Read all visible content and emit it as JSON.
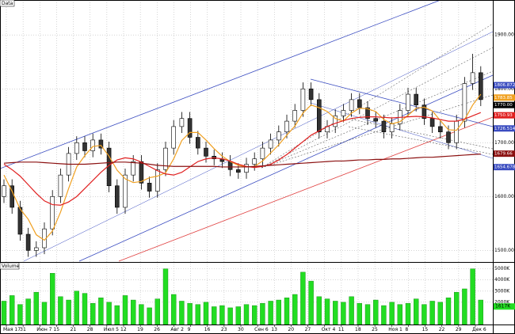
{
  "chart_data": [
    {
      "type": "candlestick",
      "title": "Data",
      "grid": true,
      "ylim": [
        1480,
        1965
      ],
      "yticks": [
        {
          "value": 1500,
          "label": "1500.00"
        },
        {
          "value": 1600,
          "label": "1600.00"
        },
        {
          "value": 1700,
          "label": "1700.00"
        },
        {
          "value": 1800,
          "label": "1800.00"
        },
        {
          "value": 1900,
          "label": "1900.00"
        }
      ],
      "open": [
        1600,
        1620,
        1580,
        1530,
        1500,
        1505,
        1540,
        1600,
        1640,
        1680,
        1700,
        1685,
        1705,
        1690,
        1620,
        1580,
        1640,
        1665,
        1625,
        1610,
        1650,
        1690,
        1730,
        1745,
        1710,
        1690,
        1675,
        1670,
        1665,
        1650,
        1645,
        1660,
        1670,
        1690,
        1705,
        1720,
        1740,
        1760,
        1800,
        1780,
        1720,
        1730,
        1750,
        1760,
        1780,
        1765,
        1745,
        1740,
        1720,
        1735,
        1760,
        1790,
        1770,
        1745,
        1730,
        1720,
        1700,
        1740,
        1810,
        1830
      ],
      "high": [
        1632,
        1632,
        1592,
        1542,
        1517,
        1552,
        1612,
        1652,
        1692,
        1712,
        1712,
        1717,
        1717,
        1702,
        1632,
        1652,
        1677,
        1677,
        1637,
        1662,
        1702,
        1742,
        1757,
        1757,
        1722,
        1702,
        1687,
        1682,
        1677,
        1662,
        1672,
        1682,
        1702,
        1717,
        1732,
        1752,
        1772,
        1812,
        1812,
        1792,
        1742,
        1762,
        1772,
        1792,
        1792,
        1777,
        1757,
        1752,
        1747,
        1772,
        1802,
        1802,
        1782,
        1757,
        1742,
        1732,
        1752,
        1822,
        1865,
        1842
      ],
      "low": [
        1588,
        1568,
        1518,
        1488,
        1488,
        1493,
        1528,
        1588,
        1628,
        1668,
        1673,
        1673,
        1678,
        1608,
        1568,
        1568,
        1628,
        1613,
        1598,
        1598,
        1638,
        1678,
        1718,
        1698,
        1678,
        1663,
        1658,
        1653,
        1638,
        1633,
        1633,
        1648,
        1658,
        1678,
        1693,
        1708,
        1728,
        1748,
        1768,
        1708,
        1708,
        1718,
        1738,
        1748,
        1753,
        1733,
        1728,
        1708,
        1708,
        1723,
        1748,
        1758,
        1733,
        1718,
        1708,
        1688,
        1688,
        1728,
        1798,
        1768
      ],
      "close": [
        1620,
        1580,
        1530,
        1500,
        1505,
        1540,
        1600,
        1640,
        1680,
        1700,
        1685,
        1705,
        1690,
        1620,
        1580,
        1640,
        1665,
        1625,
        1610,
        1650,
        1690,
        1730,
        1745,
        1710,
        1690,
        1675,
        1670,
        1665,
        1650,
        1645,
        1660,
        1670,
        1690,
        1705,
        1720,
        1740,
        1760,
        1800,
        1780,
        1720,
        1730,
        1750,
        1760,
        1780,
        1765,
        1745,
        1740,
        1720,
        1735,
        1760,
        1790,
        1770,
        1745,
        1730,
        1720,
        1700,
        1740,
        1810,
        1830,
        1780
      ],
      "series": [
        {
          "color": "#f0a020",
          "values": [
            1640,
            1610,
            1577,
            1558,
            1529,
            1519,
            1536,
            1571,
            1615,
            1655,
            1676,
            1693,
            1695,
            1675,
            1649,
            1633,
            1626,
            1628,
            1635,
            1638,
            1644,
            1670,
            1704,
            1719,
            1719,
            1705,
            1689,
            1675,
            1665,
            1658,
            1655,
            1656,
            1666,
            1681,
            1696,
            1714,
            1731,
            1755,
            1770,
            1765,
            1758,
            1745,
            1740,
            1755,
            1764,
            1763,
            1758,
            1743,
            1735,
            1739,
            1751,
            1764,
            1766,
            1759,
            1741,
            1724,
            1723,
            1743,
            1770,
            1790
          ]
        },
        {
          "color": "#e02020",
          "values": [
            1660,
            1650,
            1638,
            1622,
            1606,
            1592,
            1585,
            1584,
            1590,
            1600,
            1615,
            1630,
            1645,
            1658,
            1668,
            1672,
            1670,
            1664,
            1656,
            1648,
            1642,
            1640,
            1645,
            1655,
            1665,
            1670,
            1672,
            1670,
            1666,
            1660,
            1656,
            1654,
            1656,
            1660,
            1668,
            1678,
            1690,
            1702,
            1714,
            1722,
            1730,
            1736,
            1741,
            1745,
            1747,
            1748,
            1748,
            1747,
            1746,
            1747,
            1748,
            1749,
            1748,
            1746,
            1743,
            1740,
            1740,
            1744,
            1750,
            1756
          ]
        },
        {
          "color": "#8b1010",
          "values": [
            1662,
            1663,
            1664,
            1664,
            1664,
            1663,
            1662,
            1661,
            1660,
            1660,
            1660,
            1661,
            1662,
            1663,
            1664,
            1664,
            1663,
            1662,
            1660,
            1658,
            1657,
            1656,
            1656,
            1656,
            1656,
            1656,
            1656,
            1655,
            1655,
            1655,
            1655,
            1656,
            1657,
            1658,
            1659,
            1660,
            1661,
            1662,
            1663,
            1664,
            1665,
            1666,
            1666,
            1667,
            1668,
            1668,
            1669,
            1669,
            1670,
            1670,
            1671,
            1672,
            1673,
            1673,
            1674,
            1675,
            1676,
            1677,
            1678,
            1679
          ]
        }
      ],
      "marker_labels": [
        {
          "value": 1806.872,
          "label": "1806.872",
          "color": "#3a4cc0"
        },
        {
          "value": 1783.85,
          "label": "1783.85",
          "color": "#f0a020"
        },
        {
          "value": 1770.0,
          "label": "1770.00",
          "color": "#000000"
        },
        {
          "value": 1750.93,
          "label": "1750.93",
          "color": "#e02020"
        },
        {
          "value": 1726.5146,
          "label": "1726.5146",
          "color": "#3a4cc0"
        },
        {
          "value": 1679.66,
          "label": "1679.66",
          "color": "#8b1010"
        },
        {
          "value": 1654.6786,
          "label": "1654.6786",
          "color": "#3a4cc0"
        }
      ]
    },
    {
      "type": "bar",
      "title": "Volume",
      "color": "#22dd22",
      "grid": true,
      "ylim": [
        0,
        5400
      ],
      "yticks": [
        {
          "value": 2000,
          "label": "2000K"
        },
        {
          "value": 3000,
          "label": "3000K"
        },
        {
          "value": 4000,
          "label": "4000K"
        },
        {
          "value": 5000,
          "label": "5000K"
        }
      ],
      "values": [
        2100,
        2600,
        1800,
        2300,
        2900,
        2000,
        4600,
        2500,
        2200,
        3000,
        2800,
        1900,
        2400,
        2000,
        1700,
        2600,
        2200,
        1800,
        1500,
        2300,
        5000,
        2700,
        2100,
        1900,
        1800,
        2000,
        1600,
        1700,
        1500,
        1600,
        1800,
        1700,
        1900,
        2100,
        2200,
        2400,
        2700,
        4700,
        3900,
        2500,
        2300,
        2100,
        2000,
        2500,
        1900,
        1800,
        2200,
        1700,
        2000,
        1800,
        1900,
        2300,
        1800,
        2100,
        2000,
        2400,
        2900,
        3200,
        5000,
        2200
      ],
      "value_label": {
        "value": 1617,
        "label": "1617K"
      },
      "x_labels": [
        "Мая 17",
        "31",
        "Июн 7",
        "15",
        "21",
        "28",
        "Июл 5",
        "12",
        "19",
        "26",
        "Авг 2",
        "9",
        "16",
        "23",
        "30",
        "Сен 6",
        "13",
        "20",
        "27",
        "Окт 4",
        "11",
        "18",
        "25",
        "Ноя 1",
        "8",
        "15",
        "22",
        "29",
        "Дек 6"
      ]
    }
  ]
}
